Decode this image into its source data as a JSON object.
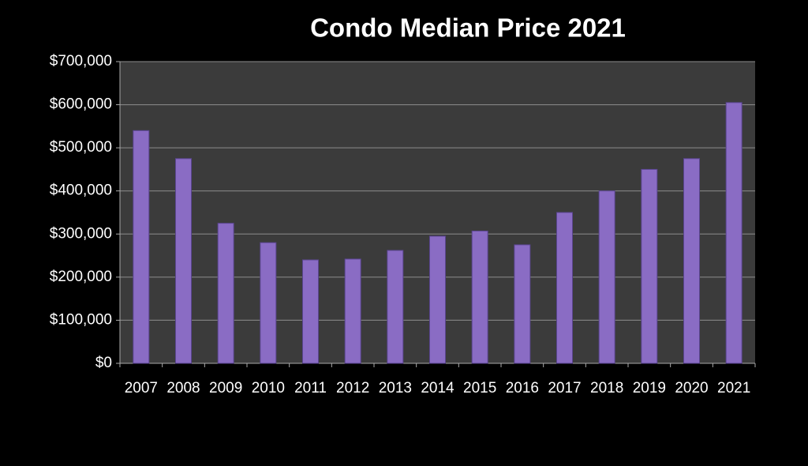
{
  "chart_data": {
    "type": "bar",
    "title": "Condo Median Price 2021",
    "categories": [
      "2007",
      "2008",
      "2009",
      "2010",
      "2011",
      "2012",
      "2013",
      "2014",
      "2015",
      "2016",
      "2017",
      "2018",
      "2019",
      "2020",
      "2021"
    ],
    "values": [
      540000,
      475000,
      325000,
      280000,
      240000,
      242000,
      262000,
      295000,
      307000,
      275000,
      350000,
      400000,
      450000,
      475000,
      605000
    ],
    "color": "#8a6cc4",
    "ylim": [
      0,
      700000
    ],
    "yticks": [
      {
        "value": 0,
        "label": "$0"
      },
      {
        "value": 100000,
        "label": "$100,000"
      },
      {
        "value": 200000,
        "label": "$200,000"
      },
      {
        "value": 300000,
        "label": "$300,000"
      },
      {
        "value": 400000,
        "label": "$400,000"
      },
      {
        "value": 500000,
        "label": "$500,000"
      },
      {
        "value": 600000,
        "label": "$600,000"
      },
      {
        "value": 700000,
        "label": "$700,000"
      }
    ],
    "grid": true
  }
}
